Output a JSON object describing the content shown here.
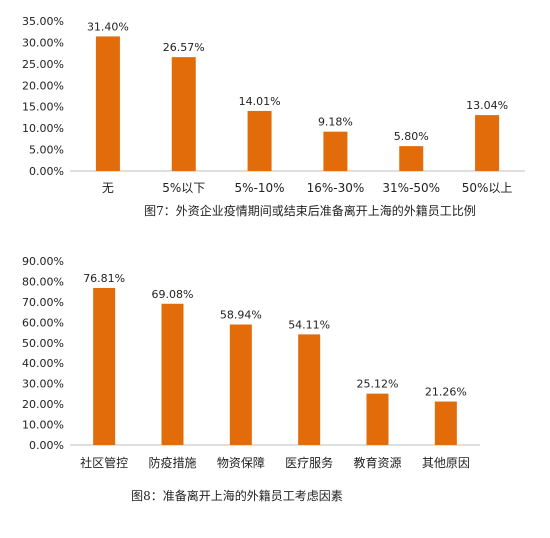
{
  "chart_data": [
    {
      "type": "bar",
      "categories": [
        "无",
        "5%以下",
        "5%-10%",
        "16%-30%",
        "31%-50%",
        "50%以上"
      ],
      "values": [
        31.4,
        26.57,
        14.01,
        9.18,
        5.8,
        13.04
      ],
      "data_labels": [
        "31.40%",
        "26.57%",
        "14.01%",
        "9.18%",
        "5.80%",
        "13.04%"
      ],
      "yticks": [
        "0.00%",
        "5.00%",
        "10.00%",
        "15.00%",
        "20.00%",
        "25.00%",
        "30.00%",
        "35.00%"
      ],
      "ylim": [
        0,
        35
      ],
      "grid": false,
      "legend": "none",
      "caption": "图7：外资企业疫情期间或结束后准备离开上海的外籍员工比例",
      "bar_color": "#e26b0a"
    },
    {
      "type": "bar",
      "categories": [
        "社区管控",
        "防疫措施",
        "物资保障",
        "医疗服务",
        "教育资源",
        "其他原因"
      ],
      "values": [
        76.81,
        69.08,
        58.94,
        54.11,
        25.12,
        21.26
      ],
      "data_labels": [
        "76.81%",
        "69.08%",
        "58.94%",
        "54.11%",
        "25.12%",
        "21.26%"
      ],
      "yticks": [
        "0.00%",
        "10.00%",
        "20.00%",
        "30.00%",
        "40.00%",
        "50.00%",
        "60.00%",
        "70.00%",
        "80.00%",
        "90.00%"
      ],
      "ylim": [
        0,
        90
      ],
      "grid": false,
      "legend": "none",
      "caption": "图8：准备离开上海的外籍员工考虑因素",
      "bar_color": "#e26b0a"
    }
  ]
}
